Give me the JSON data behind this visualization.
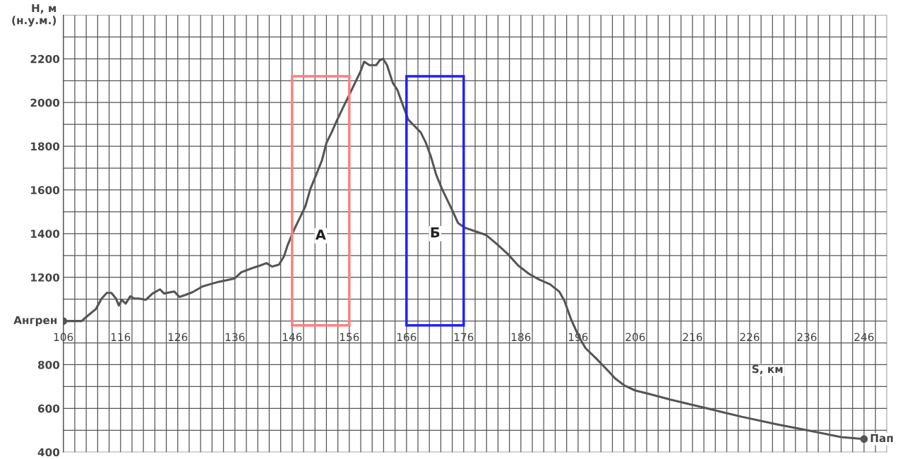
{
  "chart_data": {
    "type": "line",
    "xlabel": "S, км",
    "ylabel": "H, м\n(н.у.м.)",
    "xlim": [
      106,
      250
    ],
    "ylim": [
      400,
      2400
    ],
    "xticks": [
      106,
      {
        "value": 108,
        "label": null
      },
      {
        "value": 110,
        "label": null
      },
      {
        "value": 112,
        "label": null
      },
      {
        "value": 114,
        "label": null
      },
      116,
      {
        "value": 118,
        "label": null
      },
      {
        "value": 120,
        "label": null
      },
      {
        "value": 122,
        "label": null
      },
      {
        "value": 124,
        "label": null
      },
      126,
      {
        "value": 128,
        "label": null
      },
      {
        "value": 130,
        "label": null
      },
      {
        "value": 132,
        "label": null
      },
      {
        "value": 134,
        "label": null
      },
      136,
      {
        "value": 138,
        "label": null
      },
      {
        "value": 140,
        "label": null
      },
      {
        "value": 142,
        "label": null
      },
      {
        "value": 144,
        "label": null
      },
      146,
      {
        "value": 148,
        "label": null
      },
      {
        "value": 150,
        "label": null
      },
      {
        "value": 152,
        "label": null
      },
      {
        "value": 154,
        "label": null
      },
      156,
      {
        "value": 158,
        "label": null
      },
      {
        "value": 160,
        "label": null
      },
      {
        "value": 162,
        "label": null
      },
      {
        "value": 164,
        "label": null
      },
      166,
      {
        "value": 168,
        "label": null
      },
      {
        "value": 170,
        "label": null
      },
      {
        "value": 172,
        "label": null
      },
      {
        "value": 174,
        "label": null
      },
      176,
      {
        "value": 178,
        "label": null
      },
      {
        "value": 180,
        "label": null
      },
      {
        "value": 182,
        "label": null
      },
      {
        "value": 184,
        "label": null
      },
      186,
      {
        "value": 188,
        "label": null
      },
      {
        "value": 190,
        "label": null
      },
      {
        "value": 192,
        "label": null
      },
      {
        "value": 194,
        "label": null
      },
      196,
      {
        "value": 198,
        "label": null
      },
      {
        "value": 200,
        "label": null
      },
      {
        "value": 202,
        "label": null
      },
      {
        "value": 204,
        "label": null
      },
      206,
      {
        "value": 208,
        "label": null
      },
      {
        "value": 210,
        "label": null
      },
      {
        "value": 212,
        "label": null
      },
      {
        "value": 214,
        "label": null
      },
      216,
      {
        "value": 218,
        "label": null
      },
      {
        "value": 220,
        "label": null
      },
      {
        "value": 222,
        "label": null
      },
      {
        "value": 224,
        "label": null
      },
      226,
      {
        "value": 228,
        "label": null
      },
      {
        "value": 230,
        "label": null
      },
      {
        "value": 232,
        "label": null
      },
      {
        "value": 234,
        "label": null
      },
      236,
      {
        "value": 238,
        "label": null
      },
      {
        "value": 240,
        "label": null
      },
      {
        "value": 242,
        "label": null
      },
      {
        "value": 244,
        "label": null
      },
      246,
      {
        "value": 248,
        "label": null
      },
      {
        "value": 250,
        "label": null
      }
    ],
    "yticks": [
      400,
      {
        "value": 500,
        "label": null
      },
      600,
      {
        "value": 700,
        "label": null
      },
      800,
      {
        "value": 900,
        "label": null
      },
      {
        "value": 1000,
        "label": null
      },
      {
        "value": 1100,
        "label": null
      },
      1200,
      {
        "value": 1300,
        "label": null
      },
      1400,
      {
        "value": 1500,
        "label": null
      },
      1600,
      {
        "value": 1700,
        "label": null
      },
      1800,
      {
        "value": 1900,
        "label": null
      },
      2000,
      {
        "value": 2100,
        "label": null
      },
      2200,
      {
        "value": 2300,
        "label": null
      },
      {
        "value": 2400,
        "label": null
      }
    ],
    "grid": true,
    "series": [
      {
        "color": "#555555",
        "x": [
          106,
          109.2,
          110.2,
          111.7,
          112.7,
          113.6,
          114.4,
          115.2,
          115.7,
          116.2,
          116.9,
          117.7,
          118.4,
          119.2,
          120.4,
          121.6,
          122.9,
          123.6,
          125.4,
          126.3,
          127.3,
          128.6,
          130.3,
          131.6,
          132.8,
          134,
          135.9,
          137.1,
          139,
          140.5,
          141.5,
          142.5,
          143.7,
          144.6,
          145.2,
          146.2,
          147.4,
          148.3,
          149.2,
          150.2,
          151.2,
          152,
          152.9,
          153.9,
          154.9,
          155.8,
          157,
          157.9,
          158.6,
          159.5,
          160.7,
          161.3,
          161.9,
          162.6,
          163.6,
          164.4,
          165.3,
          166.3,
          167.5,
          168.5,
          169.4,
          170.3,
          171.2,
          172.2,
          173.1,
          174,
          175,
          176.2,
          178.1,
          179.9,
          181.8,
          183.7,
          185.5,
          187.4,
          189.2,
          191.1,
          192.7,
          193.6,
          194.8,
          196.1,
          197.3,
          199.2,
          201,
          202.5,
          204.1,
          206,
          208.5,
          212.2,
          218.4,
          224.6,
          230.8,
          237,
          242,
          246
        ],
        "values": [
          1000,
          1000,
          1023,
          1055,
          1103,
          1129,
          1129,
          1103,
          1071,
          1097,
          1080,
          1113,
          1103,
          1103,
          1097,
          1126,
          1145,
          1126,
          1135,
          1110,
          1119,
          1132,
          1158,
          1168,
          1177,
          1184,
          1194,
          1223,
          1242,
          1255,
          1265,
          1249,
          1258,
          1297,
          1346,
          1410,
          1475,
          1524,
          1605,
          1669,
          1734,
          1815,
          1863,
          1922,
          1977,
          2025,
          2090,
          2139,
          2187,
          2171,
          2171,
          2193,
          2200,
          2171,
          2090,
          2058,
          1993,
          1922,
          1890,
          1863,
          1815,
          1750,
          1669,
          1605,
          1556,
          1507,
          1449,
          1427,
          1410,
          1394,
          1352,
          1307,
          1255,
          1216,
          1190,
          1168,
          1135,
          1093,
          1006,
          931,
          876,
          828,
          779,
          737,
          705,
          682,
          666,
          640,
          601,
          562,
          527,
          495,
          469,
          460
        ]
      },
      {
        "type": "scatter",
        "color": "#555555",
        "marker": "circle",
        "x": [
          106,
          246
        ],
        "values": [
          1000,
          460
        ]
      },
      {
        "type": "bar",
        "color": "#ff7f7f",
        "x": [
          151
        ],
        "base": [
          980
        ],
        "values": [
          1140
        ]
      },
      {
        "type": "bar",
        "color": "#1f1fff",
        "x": [
          171
        ],
        "base": [
          980
        ],
        "values": [
          1140
        ]
      }
    ],
    "annotations": [
      {
        "text": "А",
        "x": 151,
        "y": 1390
      },
      {
        "text": "Б",
        "x": 171,
        "y": 1400
      },
      {
        "text": "Ангрен",
        "x": 106,
        "y": 1000
      },
      {
        "text": "Пап",
        "x": 246,
        "y": 460
      }
    ]
  }
}
